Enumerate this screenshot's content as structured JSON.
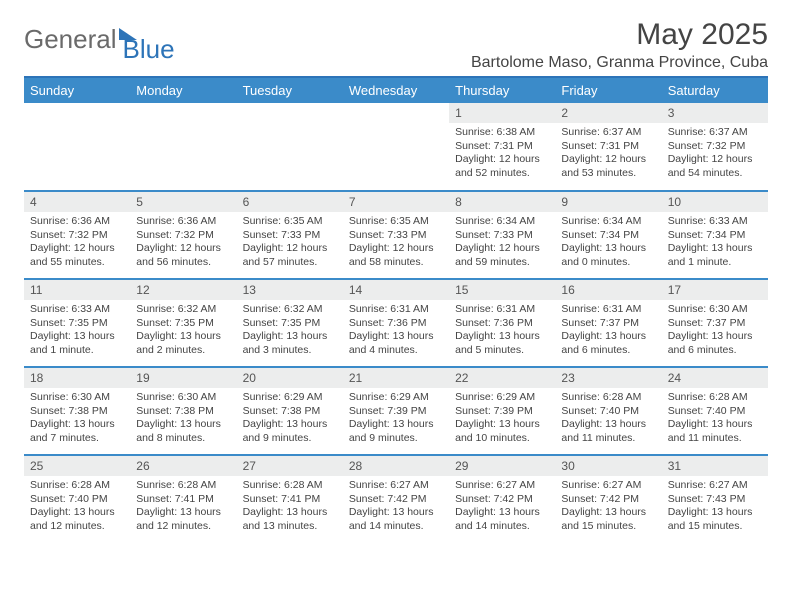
{
  "logo": {
    "text1": "General",
    "text2": "Blue"
  },
  "title": "May 2025",
  "location": "Bartolome Maso, Granma Province, Cuba",
  "day_headers": [
    "Sunday",
    "Monday",
    "Tuesday",
    "Wednesday",
    "Thursday",
    "Friday",
    "Saturday"
  ],
  "colors": {
    "header_bg": "#3b8bc9",
    "divider": "#2d74b8",
    "daynum_bg": "#eceded"
  },
  "weeks": [
    [
      {
        "n": "",
        "sr": "",
        "ss": "",
        "dl1": "",
        "dl2": ""
      },
      {
        "n": "",
        "sr": "",
        "ss": "",
        "dl1": "",
        "dl2": ""
      },
      {
        "n": "",
        "sr": "",
        "ss": "",
        "dl1": "",
        "dl2": ""
      },
      {
        "n": "",
        "sr": "",
        "ss": "",
        "dl1": "",
        "dl2": ""
      },
      {
        "n": "1",
        "sr": "Sunrise: 6:38 AM",
        "ss": "Sunset: 7:31 PM",
        "dl1": "Daylight: 12 hours",
        "dl2": "and 52 minutes."
      },
      {
        "n": "2",
        "sr": "Sunrise: 6:37 AM",
        "ss": "Sunset: 7:31 PM",
        "dl1": "Daylight: 12 hours",
        "dl2": "and 53 minutes."
      },
      {
        "n": "3",
        "sr": "Sunrise: 6:37 AM",
        "ss": "Sunset: 7:32 PM",
        "dl1": "Daylight: 12 hours",
        "dl2": "and 54 minutes."
      }
    ],
    [
      {
        "n": "4",
        "sr": "Sunrise: 6:36 AM",
        "ss": "Sunset: 7:32 PM",
        "dl1": "Daylight: 12 hours",
        "dl2": "and 55 minutes."
      },
      {
        "n": "5",
        "sr": "Sunrise: 6:36 AM",
        "ss": "Sunset: 7:32 PM",
        "dl1": "Daylight: 12 hours",
        "dl2": "and 56 minutes."
      },
      {
        "n": "6",
        "sr": "Sunrise: 6:35 AM",
        "ss": "Sunset: 7:33 PM",
        "dl1": "Daylight: 12 hours",
        "dl2": "and 57 minutes."
      },
      {
        "n": "7",
        "sr": "Sunrise: 6:35 AM",
        "ss": "Sunset: 7:33 PM",
        "dl1": "Daylight: 12 hours",
        "dl2": "and 58 minutes."
      },
      {
        "n": "8",
        "sr": "Sunrise: 6:34 AM",
        "ss": "Sunset: 7:33 PM",
        "dl1": "Daylight: 12 hours",
        "dl2": "and 59 minutes."
      },
      {
        "n": "9",
        "sr": "Sunrise: 6:34 AM",
        "ss": "Sunset: 7:34 PM",
        "dl1": "Daylight: 13 hours",
        "dl2": "and 0 minutes."
      },
      {
        "n": "10",
        "sr": "Sunrise: 6:33 AM",
        "ss": "Sunset: 7:34 PM",
        "dl1": "Daylight: 13 hours",
        "dl2": "and 1 minute."
      }
    ],
    [
      {
        "n": "11",
        "sr": "Sunrise: 6:33 AM",
        "ss": "Sunset: 7:35 PM",
        "dl1": "Daylight: 13 hours",
        "dl2": "and 1 minute."
      },
      {
        "n": "12",
        "sr": "Sunrise: 6:32 AM",
        "ss": "Sunset: 7:35 PM",
        "dl1": "Daylight: 13 hours",
        "dl2": "and 2 minutes."
      },
      {
        "n": "13",
        "sr": "Sunrise: 6:32 AM",
        "ss": "Sunset: 7:35 PM",
        "dl1": "Daylight: 13 hours",
        "dl2": "and 3 minutes."
      },
      {
        "n": "14",
        "sr": "Sunrise: 6:31 AM",
        "ss": "Sunset: 7:36 PM",
        "dl1": "Daylight: 13 hours",
        "dl2": "and 4 minutes."
      },
      {
        "n": "15",
        "sr": "Sunrise: 6:31 AM",
        "ss": "Sunset: 7:36 PM",
        "dl1": "Daylight: 13 hours",
        "dl2": "and 5 minutes."
      },
      {
        "n": "16",
        "sr": "Sunrise: 6:31 AM",
        "ss": "Sunset: 7:37 PM",
        "dl1": "Daylight: 13 hours",
        "dl2": "and 6 minutes."
      },
      {
        "n": "17",
        "sr": "Sunrise: 6:30 AM",
        "ss": "Sunset: 7:37 PM",
        "dl1": "Daylight: 13 hours",
        "dl2": "and 6 minutes."
      }
    ],
    [
      {
        "n": "18",
        "sr": "Sunrise: 6:30 AM",
        "ss": "Sunset: 7:38 PM",
        "dl1": "Daylight: 13 hours",
        "dl2": "and 7 minutes."
      },
      {
        "n": "19",
        "sr": "Sunrise: 6:30 AM",
        "ss": "Sunset: 7:38 PM",
        "dl1": "Daylight: 13 hours",
        "dl2": "and 8 minutes."
      },
      {
        "n": "20",
        "sr": "Sunrise: 6:29 AM",
        "ss": "Sunset: 7:38 PM",
        "dl1": "Daylight: 13 hours",
        "dl2": "and 9 minutes."
      },
      {
        "n": "21",
        "sr": "Sunrise: 6:29 AM",
        "ss": "Sunset: 7:39 PM",
        "dl1": "Daylight: 13 hours",
        "dl2": "and 9 minutes."
      },
      {
        "n": "22",
        "sr": "Sunrise: 6:29 AM",
        "ss": "Sunset: 7:39 PM",
        "dl1": "Daylight: 13 hours",
        "dl2": "and 10 minutes."
      },
      {
        "n": "23",
        "sr": "Sunrise: 6:28 AM",
        "ss": "Sunset: 7:40 PM",
        "dl1": "Daylight: 13 hours",
        "dl2": "and 11 minutes."
      },
      {
        "n": "24",
        "sr": "Sunrise: 6:28 AM",
        "ss": "Sunset: 7:40 PM",
        "dl1": "Daylight: 13 hours",
        "dl2": "and 11 minutes."
      }
    ],
    [
      {
        "n": "25",
        "sr": "Sunrise: 6:28 AM",
        "ss": "Sunset: 7:40 PM",
        "dl1": "Daylight: 13 hours",
        "dl2": "and 12 minutes."
      },
      {
        "n": "26",
        "sr": "Sunrise: 6:28 AM",
        "ss": "Sunset: 7:41 PM",
        "dl1": "Daylight: 13 hours",
        "dl2": "and 12 minutes."
      },
      {
        "n": "27",
        "sr": "Sunrise: 6:28 AM",
        "ss": "Sunset: 7:41 PM",
        "dl1": "Daylight: 13 hours",
        "dl2": "and 13 minutes."
      },
      {
        "n": "28",
        "sr": "Sunrise: 6:27 AM",
        "ss": "Sunset: 7:42 PM",
        "dl1": "Daylight: 13 hours",
        "dl2": "and 14 minutes."
      },
      {
        "n": "29",
        "sr": "Sunrise: 6:27 AM",
        "ss": "Sunset: 7:42 PM",
        "dl1": "Daylight: 13 hours",
        "dl2": "and 14 minutes."
      },
      {
        "n": "30",
        "sr": "Sunrise: 6:27 AM",
        "ss": "Sunset: 7:42 PM",
        "dl1": "Daylight: 13 hours",
        "dl2": "and 15 minutes."
      },
      {
        "n": "31",
        "sr": "Sunrise: 6:27 AM",
        "ss": "Sunset: 7:43 PM",
        "dl1": "Daylight: 13 hours",
        "dl2": "and 15 minutes."
      }
    ]
  ]
}
